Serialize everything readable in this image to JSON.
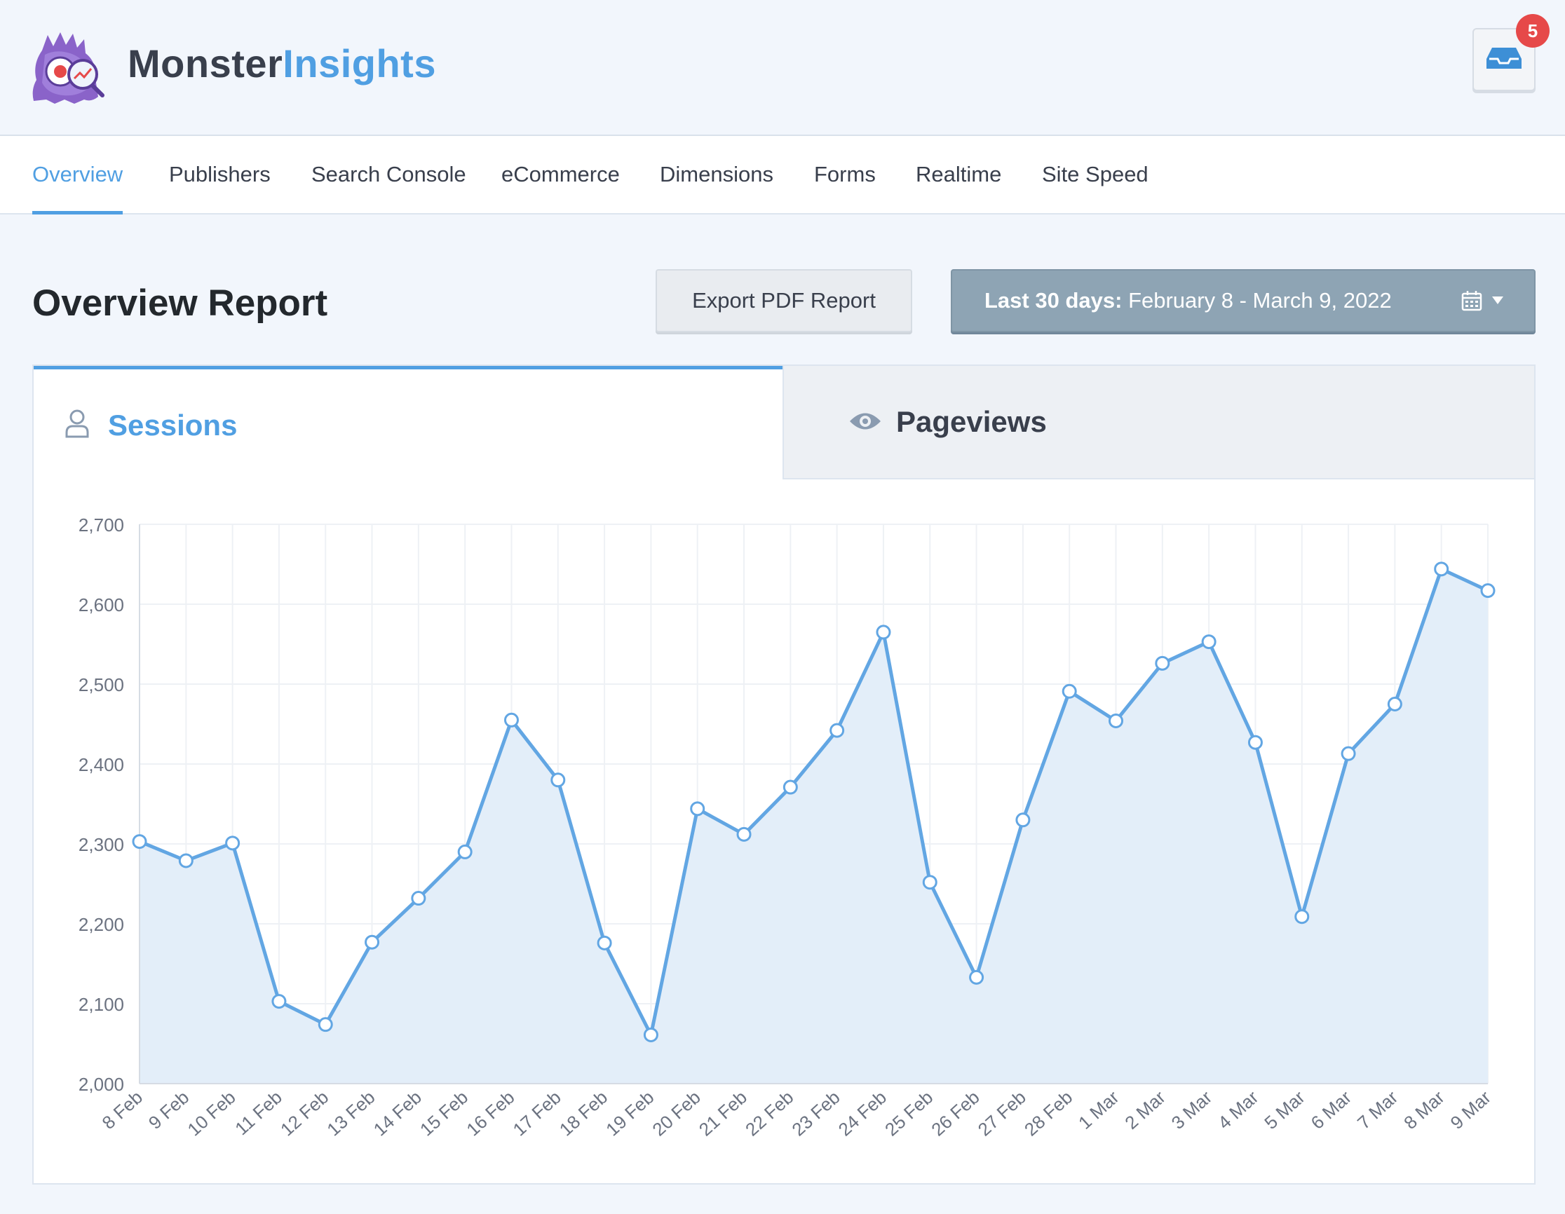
{
  "brand": {
    "name_part1": "Monster",
    "name_part2": "Insights"
  },
  "notifications": {
    "count": "5",
    "icon": "inbox-icon"
  },
  "nav": {
    "items": [
      {
        "label": "Overview",
        "active": true
      },
      {
        "label": "Publishers"
      },
      {
        "label": "Search Console"
      },
      {
        "label": "eCommerce"
      },
      {
        "label": "Dimensions"
      },
      {
        "label": "Forms"
      },
      {
        "label": "Realtime"
      },
      {
        "label": "Site Speed"
      }
    ]
  },
  "page": {
    "title": "Overview Report",
    "export_label": "Export PDF Report",
    "date_prefix": "Last 30 days:",
    "date_range": "February 8 - March 9, 2022"
  },
  "tabs": {
    "sessions": "Sessions",
    "pageviews": "Pageviews"
  },
  "colors": {
    "accent": "#509fe2",
    "line": "#62a6e3",
    "area": "#e1edf9",
    "badge": "#e64949"
  },
  "chart_data": {
    "type": "area",
    "grid": true,
    "ylim": [
      2000,
      2700
    ],
    "yticks": [
      "2,000",
      "2,100",
      "2,200",
      "2,300",
      "2,400",
      "2,500",
      "2,600",
      "2,700"
    ],
    "categories": [
      "8 Feb",
      "9 Feb",
      "10 Feb",
      "11 Feb",
      "12 Feb",
      "13 Feb",
      "14 Feb",
      "15 Feb",
      "16 Feb",
      "17 Feb",
      "18 Feb",
      "19 Feb",
      "20 Feb",
      "21 Feb",
      "22 Feb",
      "23 Feb",
      "24 Feb",
      "25 Feb",
      "26 Feb",
      "27 Feb",
      "28 Feb",
      "1 Mar",
      "2 Mar",
      "3 Mar",
      "4 Mar",
      "5 Mar",
      "6 Mar",
      "7 Mar",
      "8 Mar",
      "9 Mar"
    ],
    "values": [
      2303,
      2279,
      2301,
      2103,
      2074,
      2177,
      2232,
      2290,
      2455,
      2380,
      2176,
      2061,
      2344,
      2312,
      2371,
      2442,
      2565,
      2252,
      2133,
      2330,
      2491,
      2454,
      2526,
      2553,
      2427,
      2209,
      2413,
      2475,
      2644,
      2617
    ]
  }
}
